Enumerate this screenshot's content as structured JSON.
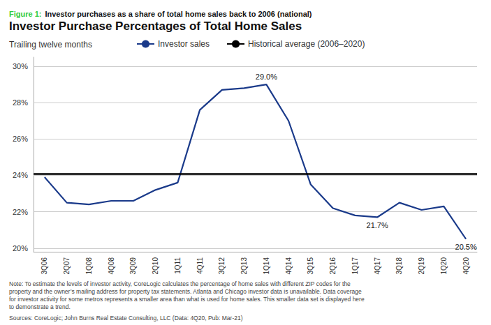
{
  "chart_data": {
    "type": "line",
    "figure_label": "Figure 1:",
    "figure_caption": "Investor purchases as a share of total home sales back to 2006 (national)",
    "title": "Investor Purchase Percentages of Total Home Sales",
    "subtitle": "Trailing twelve months",
    "categories": [
      "3Q06",
      "2Q07",
      "1Q08",
      "4Q08",
      "3Q09",
      "2Q10",
      "1Q11",
      "4Q11",
      "3Q12",
      "2Q13",
      "1Q14",
      "4Q14",
      "3Q15",
      "2Q16",
      "1Q17",
      "4Q17",
      "3Q18",
      "2Q19",
      "1Q20",
      "4Q20"
    ],
    "series": [
      {
        "name": "Investor sales",
        "color": "#1a3a8a",
        "values": [
          23.9,
          22.5,
          22.4,
          22.6,
          22.6,
          23.2,
          23.6,
          27.6,
          28.7,
          28.8,
          29.0,
          27.0,
          23.5,
          22.2,
          21.8,
          21.7,
          22.5,
          22.1,
          22.3,
          20.5
        ]
      }
    ],
    "hlines": [
      {
        "name": "Historical average (2006–2020)",
        "value": 24.1,
        "color": "#000000"
      }
    ],
    "annotations": [
      {
        "text": "29.0%",
        "x": "1Q14",
        "y": 29.0
      },
      {
        "text": "21.7%",
        "x": "4Q17",
        "y": 21.7
      },
      {
        "text": "20.5%",
        "x": "4Q20",
        "y": 20.5
      }
    ],
    "ylim": [
      19.8,
      30.5
    ],
    "yticks": [
      {
        "value": 20,
        "label": "20%"
      },
      {
        "value": 22,
        "label": "22%"
      },
      {
        "value": 24,
        "label": "24%"
      },
      {
        "value": 26,
        "label": "26%"
      },
      {
        "value": 28,
        "label": "28%"
      },
      {
        "value": 30,
        "label": "30%"
      }
    ],
    "grid": true,
    "note": "Note: To estimate the levels of investor activity, CoreLogic calculates the percentage of home sales with different ZIP codes for the\nproperty and the owner’s mailing address for property tax statements. Atlanta and Chicago investor data is unavailable. Data coverage\nfor investor activity for some metros represents a smaller area than what is used for home sales. This smaller data set is displayed here\nto demonstrate a trend.",
    "sources": "Sources: CoreLogic; John Burns Real Estate Consulting, LLC (Data: 4Q20, Pub: Mar-21)"
  }
}
